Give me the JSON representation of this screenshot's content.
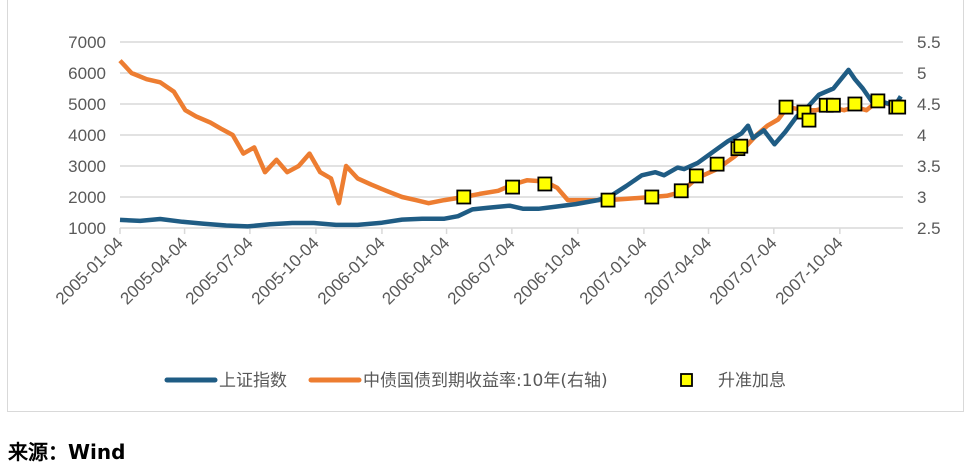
{
  "chart_data": {
    "type": "line",
    "title": "",
    "x_type": "date",
    "xlim": [
      "2005-01-04",
      "2007-12-31"
    ],
    "x_tick_labels": [
      "2005-01-04",
      "2005-04-04",
      "2005-07-04",
      "2005-10-04",
      "2006-01-04",
      "2006-04-04",
      "2006-07-04",
      "2006-10-04",
      "2007-01-04",
      "2007-04-04",
      "2007-07-04",
      "2007-10-04"
    ],
    "y_left": {
      "ylim": [
        1000,
        7000
      ],
      "ticks": [
        "7000",
        "6000",
        "5000",
        "4000",
        "3000",
        "2000",
        "1000"
      ]
    },
    "y_right": {
      "ylim": [
        2.5,
        5.5
      ],
      "ticks": [
        "5.5",
        "5",
        "4.5",
        "4",
        "3.5",
        "3",
        "2.5"
      ]
    },
    "grid": true,
    "legend_placement": "bottom",
    "series": [
      {
        "name": "上证指数",
        "axis": "left",
        "color": "#1f5c84",
        "x": [
          "2005-01-04",
          "2005-02-01",
          "2005-03-01",
          "2005-04-01",
          "2005-05-01",
          "2005-06-01",
          "2005-07-01",
          "2005-08-01",
          "2005-09-01",
          "2005-10-01",
          "2005-11-01",
          "2005-12-01",
          "2006-01-04",
          "2006-02-01",
          "2006-03-01",
          "2006-04-01",
          "2006-04-20",
          "2006-05-10",
          "2006-06-01",
          "2006-07-01",
          "2006-07-20",
          "2006-08-10",
          "2006-09-01",
          "2006-10-01",
          "2006-11-01",
          "2006-11-20",
          "2006-12-10",
          "2007-01-01",
          "2007-01-20",
          "2007-02-01",
          "2007-02-20",
          "2007-03-01",
          "2007-03-20",
          "2007-04-10",
          "2007-05-01",
          "2007-05-20",
          "2007-05-29",
          "2007-06-05",
          "2007-06-20",
          "2007-07-05",
          "2007-07-20",
          "2007-08-05",
          "2007-08-20",
          "2007-09-05",
          "2007-09-25",
          "2007-10-16",
          "2007-10-25",
          "2007-11-05",
          "2007-11-20",
          "2007-12-05",
          "2007-12-20",
          "2007-12-28"
        ],
        "y": [
          1260,
          1230,
          1290,
          1200,
          1140,
          1080,
          1050,
          1120,
          1160,
          1160,
          1100,
          1100,
          1170,
          1270,
          1300,
          1300,
          1380,
          1600,
          1650,
          1720,
          1620,
          1620,
          1680,
          1770,
          1900,
          2050,
          2350,
          2700,
          2800,
          2700,
          2950,
          2900,
          3100,
          3450,
          3800,
          4050,
          4300,
          3900,
          4150,
          3700,
          4100,
          4600,
          4900,
          5300,
          5500,
          6100,
          5800,
          5500,
          5000,
          5050,
          4950,
          5250
        ]
      },
      {
        "name": "中债国债到期收益率:10年(右轴)",
        "axis": "right",
        "color": "#ed7d31",
        "x": [
          "2005-01-04",
          "2005-01-20",
          "2005-02-10",
          "2005-03-01",
          "2005-03-20",
          "2005-04-05",
          "2005-04-20",
          "2005-05-10",
          "2005-05-25",
          "2005-06-10",
          "2005-06-25",
          "2005-07-10",
          "2005-07-25",
          "2005-08-10",
          "2005-08-25",
          "2005-09-10",
          "2005-09-25",
          "2005-10-10",
          "2005-10-25",
          "2005-11-05",
          "2005-11-15",
          "2005-12-01",
          "2005-12-20",
          "2006-01-10",
          "2006-02-01",
          "2006-02-20",
          "2006-03-10",
          "2006-04-01",
          "2006-04-28",
          "2006-05-20",
          "2006-06-15",
          "2006-07-05",
          "2006-07-25",
          "2006-08-19",
          "2006-09-05",
          "2006-09-20",
          "2006-10-10",
          "2006-11-15",
          "2006-12-10",
          "2007-01-15",
          "2007-02-05",
          "2007-02-25",
          "2007-03-18",
          "2007-04-16",
          "2007-05-10",
          "2007-05-25",
          "2007-06-10",
          "2007-06-25",
          "2007-07-10",
          "2007-07-23",
          "2007-08-15",
          "2007-09-01",
          "2007-09-20",
          "2007-10-10",
          "2007-10-25",
          "2007-11-10",
          "2007-11-26",
          "2007-12-10",
          "2007-12-28"
        ],
        "y": [
          5.2,
          5.0,
          4.9,
          4.85,
          4.7,
          4.4,
          4.3,
          4.2,
          4.1,
          4.0,
          3.7,
          3.8,
          3.4,
          3.6,
          3.4,
          3.5,
          3.7,
          3.4,
          3.3,
          2.9,
          3.5,
          3.3,
          3.2,
          3.1,
          3.0,
          2.95,
          2.9,
          2.95,
          3.0,
          3.05,
          3.1,
          3.2,
          3.27,
          3.25,
          3.15,
          2.95,
          2.95,
          2.95,
          2.97,
          3.0,
          3.02,
          3.08,
          3.3,
          3.45,
          3.65,
          3.8,
          4.0,
          4.15,
          4.25,
          4.45,
          4.4,
          4.4,
          4.45,
          4.4,
          4.45,
          4.4,
          4.55,
          4.5,
          4.5
        ]
      },
      {
        "name": "升准加息",
        "axis": "right",
        "marker": "square",
        "color": "#ffff00",
        "x": [
          "2006-04-28",
          "2006-07-05",
          "2006-08-19",
          "2006-11-15",
          "2007-01-15",
          "2007-02-25",
          "2007-03-18",
          "2007-04-16",
          "2007-05-15",
          "2007-05-19",
          "2007-07-21",
          "2007-08-15",
          "2007-08-22",
          "2007-09-15",
          "2007-09-25",
          "2007-10-25",
          "2007-11-26",
          "2007-12-21",
          "2007-12-25"
        ],
        "y": [
          3.0,
          3.16,
          3.21,
          2.95,
          3.0,
          3.1,
          3.34,
          3.53,
          3.78,
          3.82,
          4.45,
          4.37,
          4.24,
          4.48,
          4.48,
          4.5,
          4.55,
          4.45,
          4.45
        ]
      }
    ]
  },
  "source": "来源：Wind"
}
